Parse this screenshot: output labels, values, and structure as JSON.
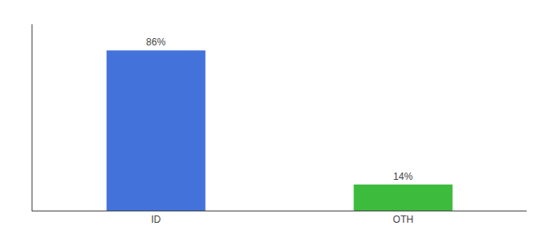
{
  "chart_data": {
    "type": "bar",
    "categories": [
      "ID",
      "OTH"
    ],
    "values": [
      86,
      14
    ],
    "value_labels": [
      "86%",
      "14%"
    ],
    "data_labels": true,
    "colors": [
      "#4472db",
      "#3dbb3d"
    ],
    "ylim": [
      0,
      100
    ],
    "yticks": [],
    "grid": false,
    "tick_labels": "x"
  }
}
